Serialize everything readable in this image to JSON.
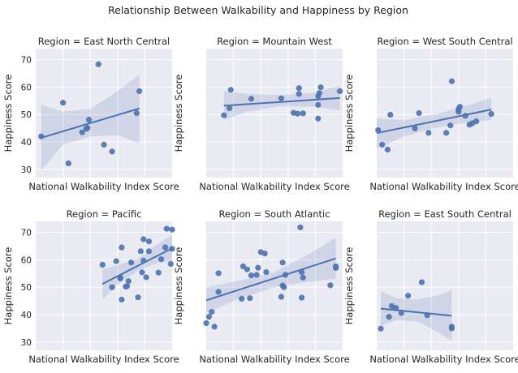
{
  "figure": {
    "title": "Relationship Between Walkability and Happiness by Region"
  },
  "shared_axes": {
    "xlabel": "National Walkability Index Score",
    "ylabel": "Happiness Score",
    "ylim": [
      27,
      74
    ],
    "yticks": [
      30,
      40,
      50,
      60,
      70
    ],
    "xlim": [
      0,
      1
    ],
    "x_tick_labels_visible": false
  },
  "colors": {
    "background": "#eaeaf2",
    "grid": "#ffffff",
    "points": "#4c72b0",
    "line": "#4c72b0",
    "band": "#4c72b0"
  },
  "chart_data": [
    {
      "type": "scatter",
      "title": "Region = East North Central",
      "xlabel": "National Walkability Index Score",
      "ylabel": "Happiness Score",
      "points": [
        {
          "x": 0.04,
          "y": 42.0
        },
        {
          "x": 0.2,
          "y": 54.3
        },
        {
          "x": 0.24,
          "y": 32.2
        },
        {
          "x": 0.34,
          "y": 43.5
        },
        {
          "x": 0.37,
          "y": 44.8
        },
        {
          "x": 0.38,
          "y": 45.1
        },
        {
          "x": 0.39,
          "y": 48.1
        },
        {
          "x": 0.46,
          "y": 68.3
        },
        {
          "x": 0.5,
          "y": 39.0
        },
        {
          "x": 0.56,
          "y": 36.5
        },
        {
          "x": 0.74,
          "y": 50.5
        },
        {
          "x": 0.76,
          "y": 58.5
        }
      ],
      "regression": {
        "x": [
          0.04,
          0.76
        ],
        "y": [
          41.5,
          52.2
        ]
      },
      "ci_band": {
        "x": [
          0.04,
          0.2,
          0.4,
          0.6,
          0.76
        ],
        "lower": [
          29.5,
          39.0,
          42.0,
          42.5,
          39.5
        ],
        "upper": [
          53.5,
          51.0,
          52.0,
          58.5,
          64.5
        ]
      }
    },
    {
      "type": "scatter",
      "title": "Region = Mountain West",
      "xlabel": "National Walkability Index Score",
      "ylabel": "Happiness Score",
      "points": [
        {
          "x": 0.13,
          "y": 49.7
        },
        {
          "x": 0.17,
          "y": 52.3
        },
        {
          "x": 0.18,
          "y": 59.0
        },
        {
          "x": 0.33,
          "y": 55.7
        },
        {
          "x": 0.55,
          "y": 55.9
        },
        {
          "x": 0.64,
          "y": 50.6
        },
        {
          "x": 0.67,
          "y": 50.3
        },
        {
          "x": 0.68,
          "y": 59.6
        },
        {
          "x": 0.68,
          "y": 57.5
        },
        {
          "x": 0.71,
          "y": 50.4
        },
        {
          "x": 0.82,
          "y": 48.5
        },
        {
          "x": 0.82,
          "y": 53.5
        },
        {
          "x": 0.82,
          "y": 56.7
        },
        {
          "x": 0.83,
          "y": 57.8
        },
        {
          "x": 0.84,
          "y": 59.9
        },
        {
          "x": 0.98,
          "y": 58.5
        }
      ],
      "regression": {
        "x": [
          0.13,
          0.98
        ],
        "y": [
          53.2,
          56.0
        ]
      },
      "ci_band": {
        "x": [
          0.13,
          0.3,
          0.55,
          0.8,
          0.98
        ],
        "lower": [
          48.0,
          51.0,
          53.0,
          52.8,
          51.5
        ],
        "upper": [
          58.5,
          57.5,
          57.0,
          58.0,
          60.5
        ]
      }
    },
    {
      "type": "scatter",
      "title": "Region = West South Central",
      "xlabel": "National Walkability Index Score",
      "ylabel": "Happiness Score",
      "points": [
        {
          "x": 0.01,
          "y": 44.3
        },
        {
          "x": 0.04,
          "y": 39.0
        },
        {
          "x": 0.08,
          "y": 37.2
        },
        {
          "x": 0.1,
          "y": 49.9
        },
        {
          "x": 0.28,
          "y": 44.9
        },
        {
          "x": 0.31,
          "y": 50.5
        },
        {
          "x": 0.38,
          "y": 43.3
        },
        {
          "x": 0.51,
          "y": 43.3
        },
        {
          "x": 0.54,
          "y": 46.0
        },
        {
          "x": 0.55,
          "y": 62.1
        },
        {
          "x": 0.6,
          "y": 51.0
        },
        {
          "x": 0.6,
          "y": 52.0
        },
        {
          "x": 0.61,
          "y": 52.8
        },
        {
          "x": 0.65,
          "y": 49.5
        },
        {
          "x": 0.68,
          "y": 46.3
        },
        {
          "x": 0.7,
          "y": 46.8
        },
        {
          "x": 0.73,
          "y": 47.5
        },
        {
          "x": 0.84,
          "y": 50.2
        }
      ],
      "regression": {
        "x": [
          0.0,
          0.84
        ],
        "y": [
          43.2,
          51.8
        ]
      },
      "ci_band": {
        "x": [
          0.0,
          0.2,
          0.42,
          0.65,
          0.84
        ],
        "lower": [
          37.5,
          42.0,
          45.0,
          47.0,
          48.0
        ],
        "upper": [
          48.5,
          48.0,
          50.0,
          53.0,
          56.0
        ]
      }
    },
    {
      "type": "scatter",
      "title": "Region = Pacific",
      "xlabel": "National Walkability Index Score",
      "ylabel": "Happiness Score",
      "points": [
        {
          "x": 0.49,
          "y": 58.2
        },
        {
          "x": 0.56,
          "y": 50.0
        },
        {
          "x": 0.59,
          "y": 59.5
        },
        {
          "x": 0.62,
          "y": 53.6
        },
        {
          "x": 0.62,
          "y": 53.2
        },
        {
          "x": 0.63,
          "y": 64.5
        },
        {
          "x": 0.63,
          "y": 45.5
        },
        {
          "x": 0.66,
          "y": 50.2
        },
        {
          "x": 0.67,
          "y": 50.4
        },
        {
          "x": 0.68,
          "y": 52.2
        },
        {
          "x": 0.7,
          "y": 59.0
        },
        {
          "x": 0.75,
          "y": 46.3
        },
        {
          "x": 0.77,
          "y": 63.1
        },
        {
          "x": 0.78,
          "y": 55.4
        },
        {
          "x": 0.79,
          "y": 67.5
        },
        {
          "x": 0.79,
          "y": 59.7
        },
        {
          "x": 0.81,
          "y": 53.6
        },
        {
          "x": 0.83,
          "y": 63.1
        },
        {
          "x": 0.83,
          "y": 66.7
        },
        {
          "x": 0.9,
          "y": 55.3
        },
        {
          "x": 0.92,
          "y": 60.2
        },
        {
          "x": 0.95,
          "y": 64.5
        },
        {
          "x": 0.96,
          "y": 71.3
        },
        {
          "x": 0.99,
          "y": 58.5
        },
        {
          "x": 1.0,
          "y": 71.0
        },
        {
          "x": 1.0,
          "y": 64.0
        }
      ],
      "regression": {
        "x": [
          0.49,
          1.0
        ],
        "y": [
          51.2,
          64.2
        ]
      },
      "ci_band": {
        "x": [
          0.49,
          0.6,
          0.75,
          0.9,
          1.0
        ],
        "lower": [
          45.5,
          51.0,
          56.0,
          59.0,
          59.5
        ],
        "upper": [
          56.5,
          58.0,
          60.5,
          66.0,
          69.0
        ]
      }
    },
    {
      "type": "scatter",
      "title": "Region = South Atlantic",
      "xlabel": "National Walkability Index Score",
      "ylabel": "Happiness Score",
      "points": [
        {
          "x": 0.0,
          "y": 36.9
        },
        {
          "x": 0.02,
          "y": 39.2
        },
        {
          "x": 0.04,
          "y": 41.0
        },
        {
          "x": 0.06,
          "y": 35.6
        },
        {
          "x": 0.09,
          "y": 48.3
        },
        {
          "x": 0.09,
          "y": 55.1
        },
        {
          "x": 0.26,
          "y": 45.8
        },
        {
          "x": 0.27,
          "y": 57.6
        },
        {
          "x": 0.3,
          "y": 56.5
        },
        {
          "x": 0.32,
          "y": 46.0
        },
        {
          "x": 0.33,
          "y": 54.3
        },
        {
          "x": 0.37,
          "y": 54.5
        },
        {
          "x": 0.38,
          "y": 57.1
        },
        {
          "x": 0.4,
          "y": 62.8
        },
        {
          "x": 0.43,
          "y": 62.3
        },
        {
          "x": 0.44,
          "y": 55.5
        },
        {
          "x": 0.55,
          "y": 46.5
        },
        {
          "x": 0.56,
          "y": 59.0
        },
        {
          "x": 0.56,
          "y": 50.6
        },
        {
          "x": 0.57,
          "y": 50.0
        },
        {
          "x": 0.58,
          "y": 54.5
        },
        {
          "x": 0.69,
          "y": 71.8
        },
        {
          "x": 0.7,
          "y": 46.2
        },
        {
          "x": 0.7,
          "y": 55.5
        },
        {
          "x": 0.71,
          "y": 53.5
        },
        {
          "x": 0.91,
          "y": 50.7
        },
        {
          "x": 0.95,
          "y": 57.6
        },
        {
          "x": 0.95,
          "y": 57.0
        }
      ],
      "regression": {
        "x": [
          0.0,
          0.95
        ],
        "y": [
          45.2,
          60.5
        ]
      },
      "ci_band": {
        "x": [
          0.0,
          0.25,
          0.5,
          0.75,
          0.95
        ],
        "lower": [
          40.5,
          46.0,
          50.0,
          52.0,
          53.0
        ],
        "upper": [
          50.0,
          52.5,
          55.5,
          62.0,
          68.0
        ]
      }
    },
    {
      "type": "scatter",
      "title": "Region = East South Central",
      "xlabel": "National Walkability Index Score",
      "ylabel": "Happiness Score",
      "points": [
        {
          "x": 0.03,
          "y": 34.9
        },
        {
          "x": 0.09,
          "y": 39.2
        },
        {
          "x": 0.11,
          "y": 43.1
        },
        {
          "x": 0.14,
          "y": 42.5
        },
        {
          "x": 0.18,
          "y": 40.6
        },
        {
          "x": 0.23,
          "y": 46.9
        },
        {
          "x": 0.33,
          "y": 51.8
        },
        {
          "x": 0.37,
          "y": 39.8
        },
        {
          "x": 0.55,
          "y": 35.0
        },
        {
          "x": 0.55,
          "y": 35.6
        }
      ],
      "regression": {
        "x": [
          0.03,
          0.55
        ],
        "y": [
          42.2,
          39.6
        ]
      },
      "ci_band": {
        "x": [
          0.03,
          0.15,
          0.3,
          0.45,
          0.55
        ],
        "lower": [
          36.0,
          38.0,
          37.5,
          33.5,
          30.5
        ],
        "upper": [
          48.5,
          46.0,
          45.5,
          47.0,
          49.0
        ]
      }
    }
  ]
}
